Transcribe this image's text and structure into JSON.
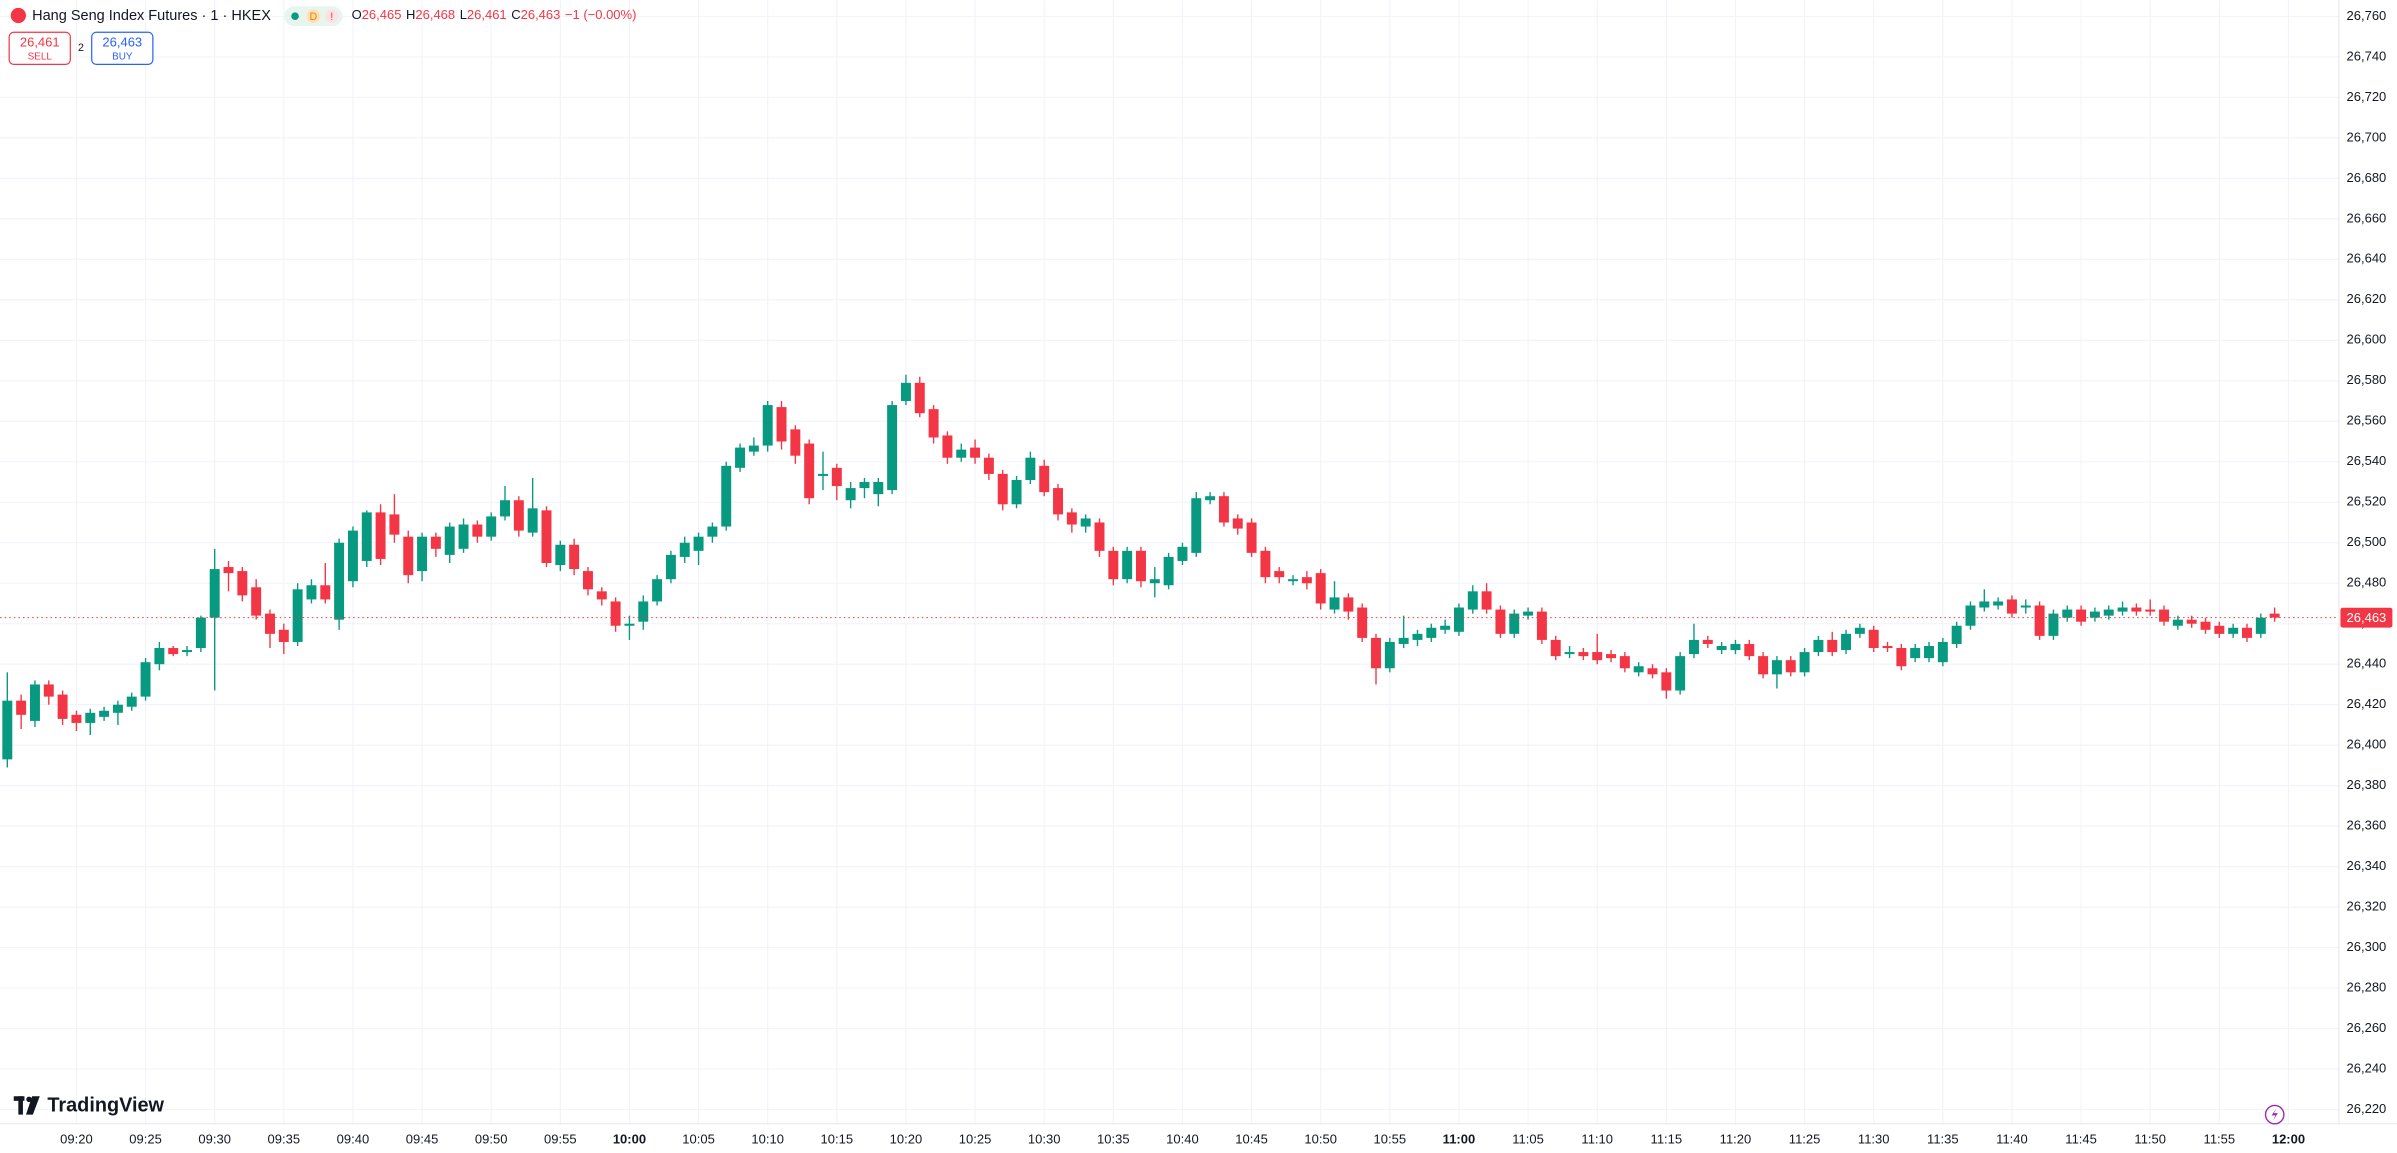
{
  "header": {
    "title": "Hang Seng Index Futures · 1 · HKEX",
    "badges": [
      "D",
      "!"
    ],
    "ohlc": [
      {
        "key": "O",
        "value": "26,465"
      },
      {
        "key": "H",
        "value": "26,468"
      },
      {
        "key": "L",
        "value": "26,461"
      },
      {
        "key": "C",
        "value": "26,463"
      }
    ],
    "change": "−1 (−0.00%)"
  },
  "trade": {
    "sell_price": "26,461",
    "sell": "SELL",
    "spread": "2",
    "buy_price": "26,463",
    "buy": "BUY"
  },
  "logo": "TradingView",
  "chart_data": {
    "type": "candlestick",
    "up_color": "#089981",
    "down_color": "#f23645",
    "grid": true,
    "x": [
      "09:15",
      "09:16",
      "09:17",
      "09:18",
      "09:19",
      "09:20",
      "09:21",
      "09:22",
      "09:23",
      "09:24",
      "09:25",
      "09:26",
      "09:27",
      "09:28",
      "09:29",
      "09:30",
      "09:31",
      "09:32",
      "09:33",
      "09:34",
      "09:35",
      "09:36",
      "09:37",
      "09:38",
      "09:39",
      "09:40",
      "09:41",
      "09:42",
      "09:43",
      "09:44",
      "09:45",
      "09:46",
      "09:47",
      "09:48",
      "09:49",
      "09:50",
      "09:51",
      "09:52",
      "09:53",
      "09:54",
      "09:55",
      "09:56",
      "09:57",
      "09:58",
      "09:59",
      "10:00",
      "10:01",
      "10:02",
      "10:03",
      "10:04",
      "10:05",
      "10:06",
      "10:07",
      "10:08",
      "10:09",
      "10:10",
      "10:11",
      "10:12",
      "10:13",
      "10:14",
      "10:15",
      "10:16",
      "10:17",
      "10:18",
      "10:19",
      "10:20",
      "10:21",
      "10:22",
      "10:23",
      "10:24",
      "10:25",
      "10:26",
      "10:27",
      "10:28",
      "10:29",
      "10:30",
      "10:31",
      "10:32",
      "10:33",
      "10:34",
      "10:35",
      "10:36",
      "10:37",
      "10:38",
      "10:39",
      "10:40",
      "10:41",
      "10:42",
      "10:43",
      "10:44",
      "10:45",
      "10:46",
      "10:47",
      "10:48",
      "10:49",
      "10:50",
      "10:51",
      "10:52",
      "10:53",
      "10:54",
      "10:55",
      "10:56",
      "10:57",
      "10:58",
      "10:59",
      "11:00",
      "11:01",
      "11:02",
      "11:03",
      "11:04",
      "11:05",
      "11:06",
      "11:07",
      "11:08",
      "11:09",
      "11:10",
      "11:11",
      "11:12",
      "11:13",
      "11:14",
      "11:15",
      "11:16",
      "11:17",
      "11:18",
      "11:19",
      "11:20",
      "11:21",
      "11:22",
      "11:23",
      "11:24",
      "11:25",
      "11:26",
      "11:27",
      "11:28",
      "11:29",
      "11:30",
      "11:31",
      "11:32",
      "11:33",
      "11:34",
      "11:35",
      "11:36",
      "11:37",
      "11:38",
      "11:39",
      "11:40",
      "11:41",
      "11:42",
      "11:43",
      "11:44",
      "11:45",
      "11:46",
      "11:47",
      "11:48",
      "11:49",
      "11:50",
      "11:51",
      "11:52",
      "11:53",
      "11:54",
      "11:55",
      "11:56",
      "11:57",
      "11:58",
      "11:59"
    ],
    "open": [
      26393,
      26422,
      26412,
      26430,
      26425,
      26415,
      26411,
      26414,
      26416,
      26419,
      26424,
      26440,
      26448,
      26446,
      26448,
      26463,
      26488,
      26486,
      26478,
      26465,
      26457,
      26451,
      26472,
      26479,
      26462,
      26481,
      26491,
      26515,
      26514,
      26503,
      26486,
      26503,
      26494,
      26497,
      26509,
      26503,
      26513,
      26521,
      26505,
      26516,
      26489,
      26499,
      26486,
      26476,
      26471,
      26459,
      26461,
      26471,
      26482,
      26493,
      26496,
      26503,
      26508,
      26537,
      26545,
      26548,
      26567,
      26556,
      26549,
      26533,
      26537,
      26521,
      26527,
      26524,
      26526,
      26570,
      26579,
      26566,
      26553,
      26542,
      26547,
      26542,
      26534,
      26519,
      26531,
      26538,
      26527,
      26515,
      26508,
      26510,
      26496,
      26482,
      26496,
      26480,
      26479,
      26491,
      26495,
      26521,
      26523,
      26512,
      26510,
      26496,
      26486,
      26481,
      26483,
      26485,
      26467,
      26473,
      26468,
      26453,
      26438,
      26450,
      26452,
      26453,
      26457,
      26456,
      26467,
      26476,
      26467,
      26455,
      26464,
      26466,
      26452,
      26445,
      26446,
      26446,
      26445,
      26444,
      26436,
      26438,
      26436,
      26427,
      26445,
      26452,
      26447,
      26447,
      26450,
      26444,
      26435,
      26442,
      26436,
      26446,
      26452,
      26447,
      26455,
      26457,
      26449,
      26448,
      26443,
      26443,
      26441,
      26450,
      26459,
      26468,
      26469,
      26472,
      26468,
      26469,
      26454,
      26463,
      26467,
      26463,
      26464,
      26466,
      26468,
      26467,
      26467,
      26459,
      26462,
      26461,
      26459,
      26455,
      26458,
      26455,
      26465
    ],
    "high": [
      26436,
      26425,
      26432,
      26432,
      26427,
      26417,
      26418,
      26419,
      26422,
      26426,
      26443,
      26451,
      26449,
      26449,
      26464,
      26497,
      26491,
      26488,
      26482,
      26467,
      26460,
      26480,
      26482,
      26490,
      26502,
      26508,
      26516,
      26519,
      26524,
      26506,
      26505,
      26505,
      26510,
      26512,
      26511,
      26515,
      26528,
      26523,
      26532,
      26518,
      26501,
      26502,
      26488,
      26478,
      26473,
      26464,
      26474,
      26484,
      26496,
      26503,
      26505,
      26510,
      26540,
      26549,
      26552,
      26570,
      26570,
      26558,
      26551,
      26545,
      26539,
      26530,
      26532,
      26532,
      26570,
      26583,
      26582,
      26568,
      26555,
      26549,
      26551,
      26544,
      26536,
      26533,
      26545,
      26541,
      26529,
      26517,
      26514,
      26512,
      26498,
      26498,
      26498,
      26488,
      26495,
      26500,
      26525,
      26525,
      26525,
      26514,
      26512,
      26498,
      26488,
      26484,
      26486,
      26487,
      26481,
      26475,
      26470,
      26455,
      26453,
      26464,
      26457,
      26460,
      26462,
      26470,
      26479,
      26480,
      26469,
      26467,
      26468,
      26468,
      26454,
      26449,
      26448,
      26455,
      26447,
      26446,
      26441,
      26440,
      26438,
      26446,
      26460,
      26454,
      26451,
      26452,
      26452,
      26446,
      26444,
      26444,
      26448,
      26454,
      26456,
      26457,
      26460,
      26459,
      26451,
      26450,
      26450,
      26451,
      26453,
      26461,
      26471,
      26477,
      26473,
      26474,
      26472,
      26471,
      26467,
      26469,
      26469,
      26468,
      26469,
      26471,
      26470,
      26472,
      26469,
      26464,
      26464,
      26463,
      26461,
      26460,
      26460,
      26465,
      26468
    ],
    "low": [
      26389,
      26408,
      26409,
      26420,
      26410,
      26407,
      26405,
      26412,
      26410,
      26417,
      26422,
      26437,
      26444,
      26444,
      26446,
      26427,
      26476,
      26471,
      26462,
      26448,
      26445,
      26449,
      26470,
      26470,
      26457,
      26478,
      26488,
      26489,
      26500,
      26480,
      26481,
      26493,
      26490,
      26495,
      26500,
      26501,
      26511,
      26503,
      26503,
      26488,
      26486,
      26484,
      26474,
      26469,
      26456,
      26452,
      26457,
      26469,
      26480,
      26490,
      26489,
      26500,
      26506,
      26535,
      26543,
      26545,
      26546,
      26539,
      26519,
      26526,
      26521,
      26517,
      26522,
      26518,
      26524,
      26568,
      26562,
      26549,
      26539,
      26540,
      26539,
      26531,
      26516,
      26517,
      26529,
      26523,
      26511,
      26505,
      26505,
      26493,
      26479,
      26480,
      26478,
      26473,
      26477,
      26489,
      26493,
      26519,
      26508,
      26504,
      26493,
      26480,
      26480,
      26479,
      26477,
      26467,
      26465,
      26462,
      26451,
      26430,
      26436,
      26448,
      26449,
      26451,
      26455,
      26454,
      26465,
      26465,
      26453,
      26453,
      26462,
      26450,
      26442,
      26443,
      26442,
      26440,
      26441,
      26436,
      26434,
      26433,
      26423,
      26425,
      26443,
      26448,
      26445,
      26445,
      26442,
      26433,
      26428,
      26434,
      26434,
      26444,
      26444,
      26445,
      26453,
      26446,
      26446,
      26437,
      26441,
      26441,
      26439,
      26448,
      26457,
      26466,
      26467,
      26463,
      26465,
      26452,
      26452,
      26461,
      26459,
      26461,
      26462,
      26464,
      26464,
      26464,
      26459,
      26457,
      26458,
      26455,
      26453,
      26453,
      26451,
      26453,
      26461
    ],
    "close": [
      26422,
      26415,
      26430,
      26424,
      26413,
      26411,
      26416,
      26417,
      26420,
      26424,
      26441,
      26448,
      26445,
      26447,
      26463,
      26487,
      26485,
      26474,
      26464,
      26455,
      26451,
      26477,
      26479,
      26472,
      26500,
      26506,
      26515,
      26492,
      26504,
      26484,
      26503,
      26497,
      26508,
      26509,
      26503,
      26513,
      26521,
      26506,
      26517,
      26490,
      26499,
      26487,
      26477,
      26472,
      26459,
      26460,
      26471,
      26482,
      26494,
      26500,
      26503,
      26508,
      26538,
      26547,
      26548,
      26568,
      26550,
      26543,
      26522,
      26534,
      26528,
      26527,
      26530,
      26530,
      26568,
      26579,
      26564,
      26552,
      26542,
      26546,
      26542,
      26534,
      26519,
      26531,
      26542,
      26525,
      26514,
      26509,
      26512,
      26496,
      26482,
      26496,
      26481,
      26482,
      26493,
      26498,
      26522,
      26523,
      26510,
      26507,
      26495,
      26483,
      26483,
      26482,
      26480,
      26470,
      26473,
      26466,
      26453,
      26438,
      26451,
      26453,
      26455,
      26458,
      26459,
      26468,
      26476,
      26467,
      26455,
      26465,
      26466,
      26452,
      26444,
      26446,
      26444,
      26442,
      26443,
      26438,
      26439,
      26435,
      26427,
      26444,
      26452,
      26450,
      26449,
      26450,
      26444,
      26435,
      26442,
      26436,
      26446,
      26452,
      26446,
      26455,
      26458,
      26448,
      26448,
      26439,
      26448,
      26449,
      26451,
      26459,
      26469,
      26471,
      26471,
      26465,
      26469,
      26454,
      26465,
      26467,
      26461,
      26466,
      26467,
      26468,
      26466,
      26466,
      26461,
      26462,
      26460,
      26457,
      26455,
      26458,
      26453,
      26463,
      26463
    ],
    "xticks": [
      "09:20",
      "09:25",
      "09:30",
      "09:35",
      "09:40",
      "09:45",
      "09:50",
      "09:55",
      "10:00",
      "10:05",
      "10:10",
      "10:15",
      "10:20",
      "10:25",
      "10:30",
      "10:35",
      "10:40",
      "10:45",
      "10:50",
      "10:55",
      "11:00",
      "11:05",
      "11:10",
      "11:15",
      "11:20",
      "11:25",
      "11:30",
      "11:35",
      "11:40",
      "11:45",
      "11:50",
      "11:55",
      "12:00"
    ],
    "ylim": [
      26213,
      26768
    ],
    "yticks": [
      {
        "value": 26220,
        "label": "26,220"
      },
      {
        "value": 26240,
        "label": "26,240"
      },
      {
        "value": 26260,
        "label": "26,260"
      },
      {
        "value": 26280,
        "label": "26,280"
      },
      {
        "value": 26300,
        "label": "26,300"
      },
      {
        "value": 26320,
        "label": "26,320"
      },
      {
        "value": 26340,
        "label": "26,340"
      },
      {
        "value": 26360,
        "label": "26,360"
      },
      {
        "value": 26380,
        "label": "26,380"
      },
      {
        "value": 26400,
        "label": "26,400"
      },
      {
        "value": 26420,
        "label": "26,420"
      },
      {
        "value": 26440,
        "label": "26,440"
      },
      {
        "value": 26460,
        "label": "26,460"
      },
      {
        "value": 26480,
        "label": "26,480"
      },
      {
        "value": 26500,
        "label": "26,500"
      },
      {
        "value": 26520,
        "label": "26,520"
      },
      {
        "value": 26540,
        "label": "26,540"
      },
      {
        "value": 26560,
        "label": "26,560"
      },
      {
        "value": 26580,
        "label": "26,580"
      },
      {
        "value": 26600,
        "label": "26,600"
      },
      {
        "value": 26620,
        "label": "26,620"
      },
      {
        "value": 26640,
        "label": "26,640"
      },
      {
        "value": 26660,
        "label": "26,660"
      },
      {
        "value": 26680,
        "label": "26,680"
      },
      {
        "value": 26700,
        "label": "26,700"
      },
      {
        "value": 26720,
        "label": "26,720"
      },
      {
        "value": 26740,
        "label": "26,740"
      },
      {
        "value": 26760,
        "label": "26,760"
      }
    ]
  }
}
